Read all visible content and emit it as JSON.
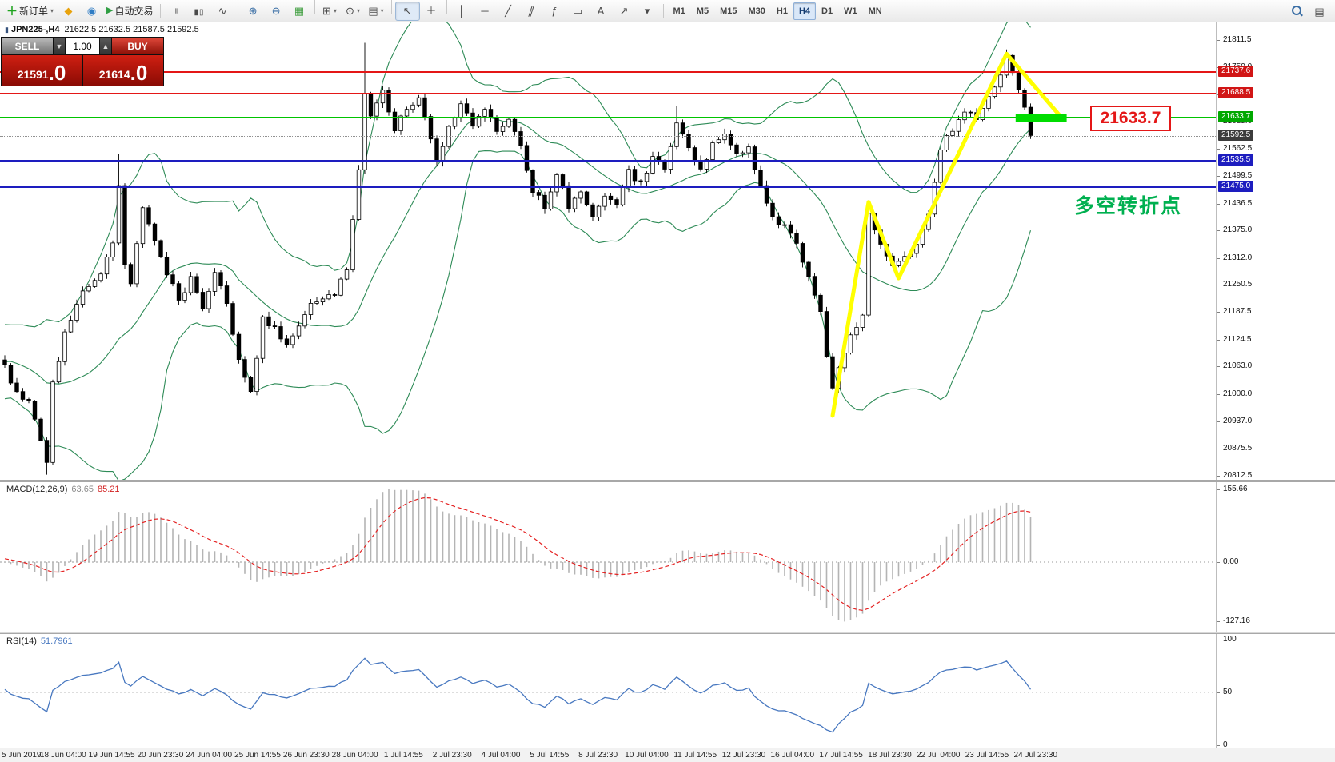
{
  "toolbar": {
    "new_order": "新订单",
    "new_order_icon": "＋",
    "autotrade": "自动交易",
    "autotrade_icon": "▶",
    "dropdown_glyph": "▾",
    "left_icon_buttons": [
      {
        "name": "mql5-button",
        "icon": "diamond-icon",
        "glyph": "◆",
        "color": "#e8a20c"
      },
      {
        "name": "community-button",
        "icon": "globe-icon",
        "glyph": "◉",
        "color": "#2f7cc4"
      }
    ],
    "tools": [
      {
        "name": "bar-chart-button",
        "icon": "bars-icon",
        "glyph": "≡",
        "cls": "rot"
      },
      {
        "name": "candlestick-button",
        "icon": "candlesticks-icon",
        "glyph": "▮▯",
        "cls": "smallg"
      },
      {
        "name": "line-chart-button",
        "icon": "line-chart-icon",
        "glyph": "∿"
      },
      {
        "sep": true
      },
      {
        "name": "zoom-in-button",
        "icon": "zoom-in-icon",
        "glyph": "⊕",
        "color": "#3a6ea5"
      },
      {
        "name": "zoom-out-button",
        "icon": "zoom-out-icon",
        "glyph": "⊖",
        "color": "#3a6ea5"
      },
      {
        "name": "tile-windows-button",
        "icon": "tile-windows-icon",
        "glyph": "▦",
        "color": "#3f9e3f"
      },
      {
        "sep": true
      },
      {
        "name": "new-chart-button",
        "icon": "new-chart-icon",
        "glyph": "⊞",
        "dd": true
      },
      {
        "name": "profiles-button",
        "icon": "profiles-icon",
        "glyph": "⊙",
        "dd": true
      },
      {
        "name": "templates-button",
        "icon": "chart-template-icon",
        "glyph": "▤",
        "dd": true
      },
      {
        "sep": true
      },
      {
        "name": "cursor-button",
        "icon": "cursor-icon",
        "glyph": "↖",
        "active": true
      },
      {
        "name": "crosshair-button",
        "icon": "crosshair-icon",
        "glyph": "＋"
      },
      {
        "sep": true
      },
      {
        "name": "vertical-line-button",
        "icon": "vertical-line-icon",
        "glyph": "│"
      },
      {
        "name": "horizontal-line-button",
        "icon": "horizontal-line-icon",
        "glyph": "─"
      },
      {
        "name": "trendline-button",
        "icon": "trendline-icon",
        "glyph": "╱"
      },
      {
        "name": "channel-button",
        "icon": "channel-icon",
        "glyph": "∥",
        "cls": "skew"
      },
      {
        "name": "fibonacci-button",
        "icon": "fibonacci-icon",
        "glyph": "ƒ"
      },
      {
        "name": "shapes-button",
        "icon": "shapes-icon",
        "glyph": "▭"
      },
      {
        "name": "text-button",
        "icon": "text-icon",
        "glyph": "A"
      },
      {
        "name": "arrows-button",
        "icon": "arrow-icon",
        "glyph": "↗"
      },
      {
        "name": "objects-dropdown-button",
        "icon": "chevron-down-icon",
        "glyph": "▾"
      }
    ],
    "timeframes": [
      "M1",
      "M5",
      "M15",
      "M30",
      "H1",
      "H4",
      "D1",
      "W1",
      "MN"
    ],
    "active_timeframe": "H4",
    "right_buttons": [
      {
        "name": "search-button",
        "icon": "search-icon",
        "css": "mag"
      },
      {
        "name": "window-list-button",
        "icon": "chart-list-icon",
        "glyph": "▤"
      }
    ]
  },
  "chart": {
    "title": {
      "icon": "▮",
      "symbol": "JPN225-,H4",
      "ohlc": "21622.5 21632.5 21587.5 21592.5"
    },
    "one_click": {
      "sell_label": "SELL",
      "buy_label": "BUY",
      "volume": "1.00",
      "spin_down_glyph": "▼",
      "spin_up_glyph": "▲",
      "sell_price": {
        "main": "21591",
        "pips": ".0"
      },
      "buy_price": {
        "main": "21614",
        "pips": ".0"
      }
    },
    "y_ticks": [
      "21811.5",
      "21750.0",
      "21687.5",
      "21625.0",
      "21562.5",
      "21499.5",
      "21436.5",
      "21375.0",
      "21312.0",
      "21250.5",
      "21187.5",
      "21124.5",
      "21063.0",
      "21000.0",
      "20937.0",
      "20875.5",
      "20812.5"
    ],
    "h_lines": [
      {
        "price": 21737.6,
        "label": "21737.6",
        "color": "#e41717",
        "badge": "#d11515",
        "thickness": 2
      },
      {
        "price": 21688.5,
        "label": "21688.5",
        "color": "#e41717",
        "badge": "#d11515",
        "thickness": 2
      },
      {
        "price": 21633.7,
        "label": "21633.7",
        "color": "#00c400",
        "badge": "#00a800",
        "thickness": 2
      },
      {
        "price": 21535.5,
        "label": "21535.5",
        "color": "#1d1dbf",
        "badge": "#1d1dbf",
        "thickness": 2
      },
      {
        "price": 21475.0,
        "label": "21475.0",
        "color": "#1d1dbf",
        "badge": "#1d1dbf",
        "thickness": 2
      }
    ],
    "current_price": {
      "value": 21592.5,
      "label": "21592.5",
      "badge": "#3c3c3c"
    },
    "bollinger": {
      "period": 20,
      "deviation": 2,
      "color": "#2e8b57"
    },
    "annotations": {
      "price_callout": {
        "text": "21633.7",
        "color": "#e41717"
      },
      "turning_point_label": {
        "text": "多空转折点",
        "color": "#00b050"
      },
      "zigzag": {
        "color": "#ffff00",
        "points": [
          [
            138,
            20950
          ],
          [
            144,
            21440
          ],
          [
            149,
            21265
          ],
          [
            167,
            21780
          ],
          [
            176.5,
            21628
          ]
        ]
      },
      "highlight_segment": {
        "price": 21633.7,
        "from": 168.5,
        "to": 177,
        "color": "#00dd00"
      }
    }
  },
  "macd": {
    "label": "MACD(12,26,9)",
    "value_main": "63.65",
    "value_signal": "85.21",
    "fast": 12,
    "slow": 26,
    "signal": 9,
    "ticks": [
      "155.66",
      "0.00",
      "-127.16"
    ],
    "tick_values": [
      155.66,
      0,
      -127.16
    ],
    "hist_color": "#b4b4b4",
    "signal_color": "#e42222"
  },
  "rsi": {
    "label": "RSI(14)",
    "value": "51.7961",
    "period": 14,
    "ticks": [
      "100",
      "50",
      "0"
    ],
    "tick_values": [
      100,
      50,
      0
    ],
    "line_color": "#4878c0"
  },
  "time_axis": {
    "labels": [
      "5 Jun 2019",
      "18 Jun 04:00",
      "19 Jun 14:55",
      "20 Jun 23:30",
      "24 Jun 04:00",
      "25 Jun 14:55",
      "26 Jun 23:30",
      "28 Jun 04:00",
      "1 Jul 14:55",
      "2 Jul 23:30",
      "4 Jul 04:00",
      "5 Jul 14:55",
      "8 Jul 23:30",
      "10 Jul 04:00",
      "11 Jul 14:55",
      "12 Jul 23:30",
      "16 Jul 04:00",
      "17 Jul 14:55",
      "18 Jul 23:30",
      "22 Jul 04:00",
      "23 Jul 14:55",
      "24 Jul 23:30"
    ]
  },
  "chart_data": {
    "type": "candlestick",
    "symbol": "JPN225-",
    "period": "H4",
    "ohlc_current": {
      "open": 21622.5,
      "high": 21632.5,
      "low": 21587.5,
      "close": 21592.5
    },
    "ylim": [
      20812.5,
      21811.5
    ],
    "n_candles": 172,
    "close_anchors": [
      [
        0,
        21060
      ],
      [
        2,
        21000
      ],
      [
        4,
        20980
      ],
      [
        6,
        20900
      ],
      [
        7,
        20840
      ],
      [
        8,
        21020
      ],
      [
        10,
        21140
      ],
      [
        13,
        21230
      ],
      [
        16,
        21280
      ],
      [
        18,
        21340
      ],
      [
        19,
        21470
      ],
      [
        20,
        21300
      ],
      [
        21,
        21250
      ],
      [
        23,
        21430
      ],
      [
        25,
        21350
      ],
      [
        27,
        21280
      ],
      [
        29,
        21210
      ],
      [
        31,
        21270
      ],
      [
        33,
        21190
      ],
      [
        35,
        21280
      ],
      [
        37,
        21200
      ],
      [
        39,
        21080
      ],
      [
        41,
        21000
      ],
      [
        43,
        21170
      ],
      [
        45,
        21150
      ],
      [
        47,
        21110
      ],
      [
        49,
        21160
      ],
      [
        51,
        21200
      ],
      [
        53,
        21210
      ],
      [
        55,
        21230
      ],
      [
        57,
        21290
      ],
      [
        58,
        21400
      ],
      [
        59,
        21520
      ],
      [
        60,
        21690
      ],
      [
        61,
        21640
      ],
      [
        63,
        21690
      ],
      [
        65,
        21610
      ],
      [
        67,
        21660
      ],
      [
        69,
        21680
      ],
      [
        71,
        21590
      ],
      [
        72,
        21540
      ],
      [
        74,
        21610
      ],
      [
        76,
        21670
      ],
      [
        78,
        21620
      ],
      [
        80,
        21650
      ],
      [
        82,
        21600
      ],
      [
        84,
        21630
      ],
      [
        86,
        21570
      ],
      [
        88,
        21470
      ],
      [
        90,
        21430
      ],
      [
        92,
        21510
      ],
      [
        94,
        21430
      ],
      [
        96,
        21470
      ],
      [
        98,
        21400
      ],
      [
        100,
        21460
      ],
      [
        102,
        21430
      ],
      [
        104,
        21510
      ],
      [
        106,
        21480
      ],
      [
        108,
        21540
      ],
      [
        110,
        21520
      ],
      [
        112,
        21620
      ],
      [
        114,
        21560
      ],
      [
        116,
        21520
      ],
      [
        118,
        21570
      ],
      [
        120,
        21590
      ],
      [
        122,
        21550
      ],
      [
        124,
        21570
      ],
      [
        126,
        21470
      ],
      [
        128,
        21410
      ],
      [
        130,
        21380
      ],
      [
        132,
        21340
      ],
      [
        134,
        21270
      ],
      [
        136,
        21190
      ],
      [
        137,
        21080
      ],
      [
        138,
        21020
      ],
      [
        139,
        21060
      ],
      [
        141,
        21130
      ],
      [
        143,
        21180
      ],
      [
        144,
        21420
      ],
      [
        145,
        21380
      ],
      [
        146,
        21350
      ],
      [
        148,
        21290
      ],
      [
        150,
        21310
      ],
      [
        152,
        21340
      ],
      [
        154,
        21410
      ],
      [
        156,
        21560
      ],
      [
        158,
        21610
      ],
      [
        160,
        21650
      ],
      [
        162,
        21630
      ],
      [
        164,
        21680
      ],
      [
        166,
        21730
      ],
      [
        167,
        21770
      ],
      [
        168,
        21740
      ],
      [
        169,
        21690
      ],
      [
        170,
        21660
      ],
      [
        171,
        21592.5
      ]
    ],
    "wick_overrides": {
      "7": {
        "low": 20815
      },
      "19": {
        "high": 21550
      },
      "60": {
        "high": 21805
      },
      "112": {
        "high": 21660
      },
      "144": {
        "high": 21435
      },
      "167": {
        "high": 21790
      }
    }
  }
}
